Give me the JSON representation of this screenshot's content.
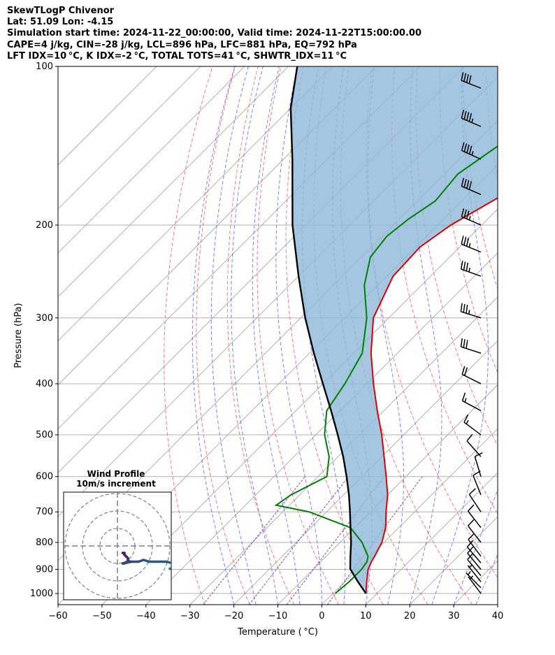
{
  "header": {
    "line1": "SkewTLogP Chivenor",
    "line2": "Lat: 51.09   Lon: -4.15",
    "line3": "Simulation start time: 2024-11-22_00:00:00, Valid time: 2024-11-22T15:00:00.00",
    "line4": "CAPE=4 j/kg, CIN=-28 j/kg, LCL=896 hPa, LFC=881 hPa, EQ=792 hPa",
    "line5": "LFT IDX=10 °C, K IDX=-2 °C, TOTAL TOTS=41 °C, SHWTR_IDX=11 °C"
  },
  "chart_data": {
    "type": "line",
    "xlabel": "Temperature ( °C)",
    "ylabel": "Pressure (hPa)",
    "xlim": [
      -60,
      40
    ],
    "ylim": [
      1050,
      100
    ],
    "y_scale": "log",
    "x_ticks": [
      "−60",
      "−50",
      "−40",
      "−30",
      "−20",
      "−10",
      "0",
      "10",
      "20",
      "30",
      "40"
    ],
    "y_ticks": [
      "100",
      "200",
      "300",
      "400",
      "500",
      "600",
      "700",
      "800",
      "900",
      "1000"
    ],
    "grid": true,
    "colors": {
      "temperature": "#e00000",
      "dewpoint": "#008000",
      "parcel": "#000000",
      "cape_fill": "#8db8d8",
      "dry_adiabat": "#ff6060",
      "moist_adiabat": "#4b5bff",
      "mixing_ratio": "#8e44ad",
      "isotherm": "#a0a0a0"
    },
    "temperature": {
      "pressure": [
        1000,
        950,
        900,
        870,
        850,
        800,
        750,
        700,
        650,
        600,
        550,
        500,
        450,
        400,
        350,
        300,
        250,
        220,
        200,
        180,
        150,
        120,
        100
      ],
      "temp": [
        7.5,
        5.0,
        2.5,
        1.5,
        1.0,
        -0.5,
        -3.0,
        -6.5,
        -10.0,
        -14.5,
        -19.5,
        -25.0,
        -31.5,
        -38.5,
        -46.0,
        -53.5,
        -58.5,
        -59.0,
        -57.0,
        -53.0,
        -46.0,
        -40.0,
        -36.0
      ]
    },
    "dewpoint": {
      "pressure": [
        1000,
        950,
        900,
        870,
        850,
        800,
        750,
        700,
        680,
        650,
        600,
        550,
        500,
        450,
        400,
        350,
        300,
        260,
        230,
        210,
        195,
        180,
        160,
        140,
        120,
        100
      ],
      "dewp": [
        0.5,
        1.0,
        1.0,
        0.5,
        -0.5,
        -5.0,
        -11.0,
        -24.0,
        -33.0,
        -32.0,
        -28.0,
        -32.0,
        -38.0,
        -43.0,
        -45.0,
        -48.0,
        -55.0,
        -63.0,
        -68.0,
        -69.0,
        -68.0,
        -66.0,
        -67.0,
        -64.0,
        -59.0,
        -55.0
      ]
    },
    "parcel": {
      "pressure": [
        1000,
        950,
        900,
        896,
        850,
        800,
        750,
        700,
        650,
        600,
        550,
        500,
        450,
        400,
        350,
        300,
        250,
        200,
        150,
        120,
        100
      ],
      "temp": [
        7.5,
        3.0,
        -1.5,
        -1.8,
        -4.5,
        -7.5,
        -11.0,
        -14.7,
        -18.8,
        -23.5,
        -28.8,
        -35.0,
        -42.0,
        -50.0,
        -59.0,
        -69.0,
        -80.0,
        -93.0,
        -108.0,
        -120.0,
        -128.0
      ]
    },
    "wind_barbs": {
      "pressure": [
        1000,
        975,
        950,
        925,
        900,
        875,
        850,
        800,
        750,
        700,
        650,
        600,
        550,
        500,
        450,
        400,
        350,
        300,
        250,
        225,
        200,
        175,
        150,
        130,
        110
      ],
      "u": [
        3,
        4,
        4,
        5,
        5,
        6,
        6,
        7,
        7,
        6,
        4,
        3,
        8,
        12,
        15,
        18,
        28,
        32,
        34,
        32,
        30,
        35,
        40,
        40,
        38
      ],
      "v": [
        -4,
        -4,
        -5,
        -6,
        -6,
        -7,
        -8,
        -9,
        -9,
        -9,
        -10,
        -10,
        -9,
        -9,
        -8,
        -9,
        -9,
        -10,
        -12,
        -13,
        -13,
        -15,
        -18,
        -17,
        -15
      ]
    },
    "inset": {
      "title": "Wind Profile",
      "subtitle": "10m/s increment"
    }
  }
}
